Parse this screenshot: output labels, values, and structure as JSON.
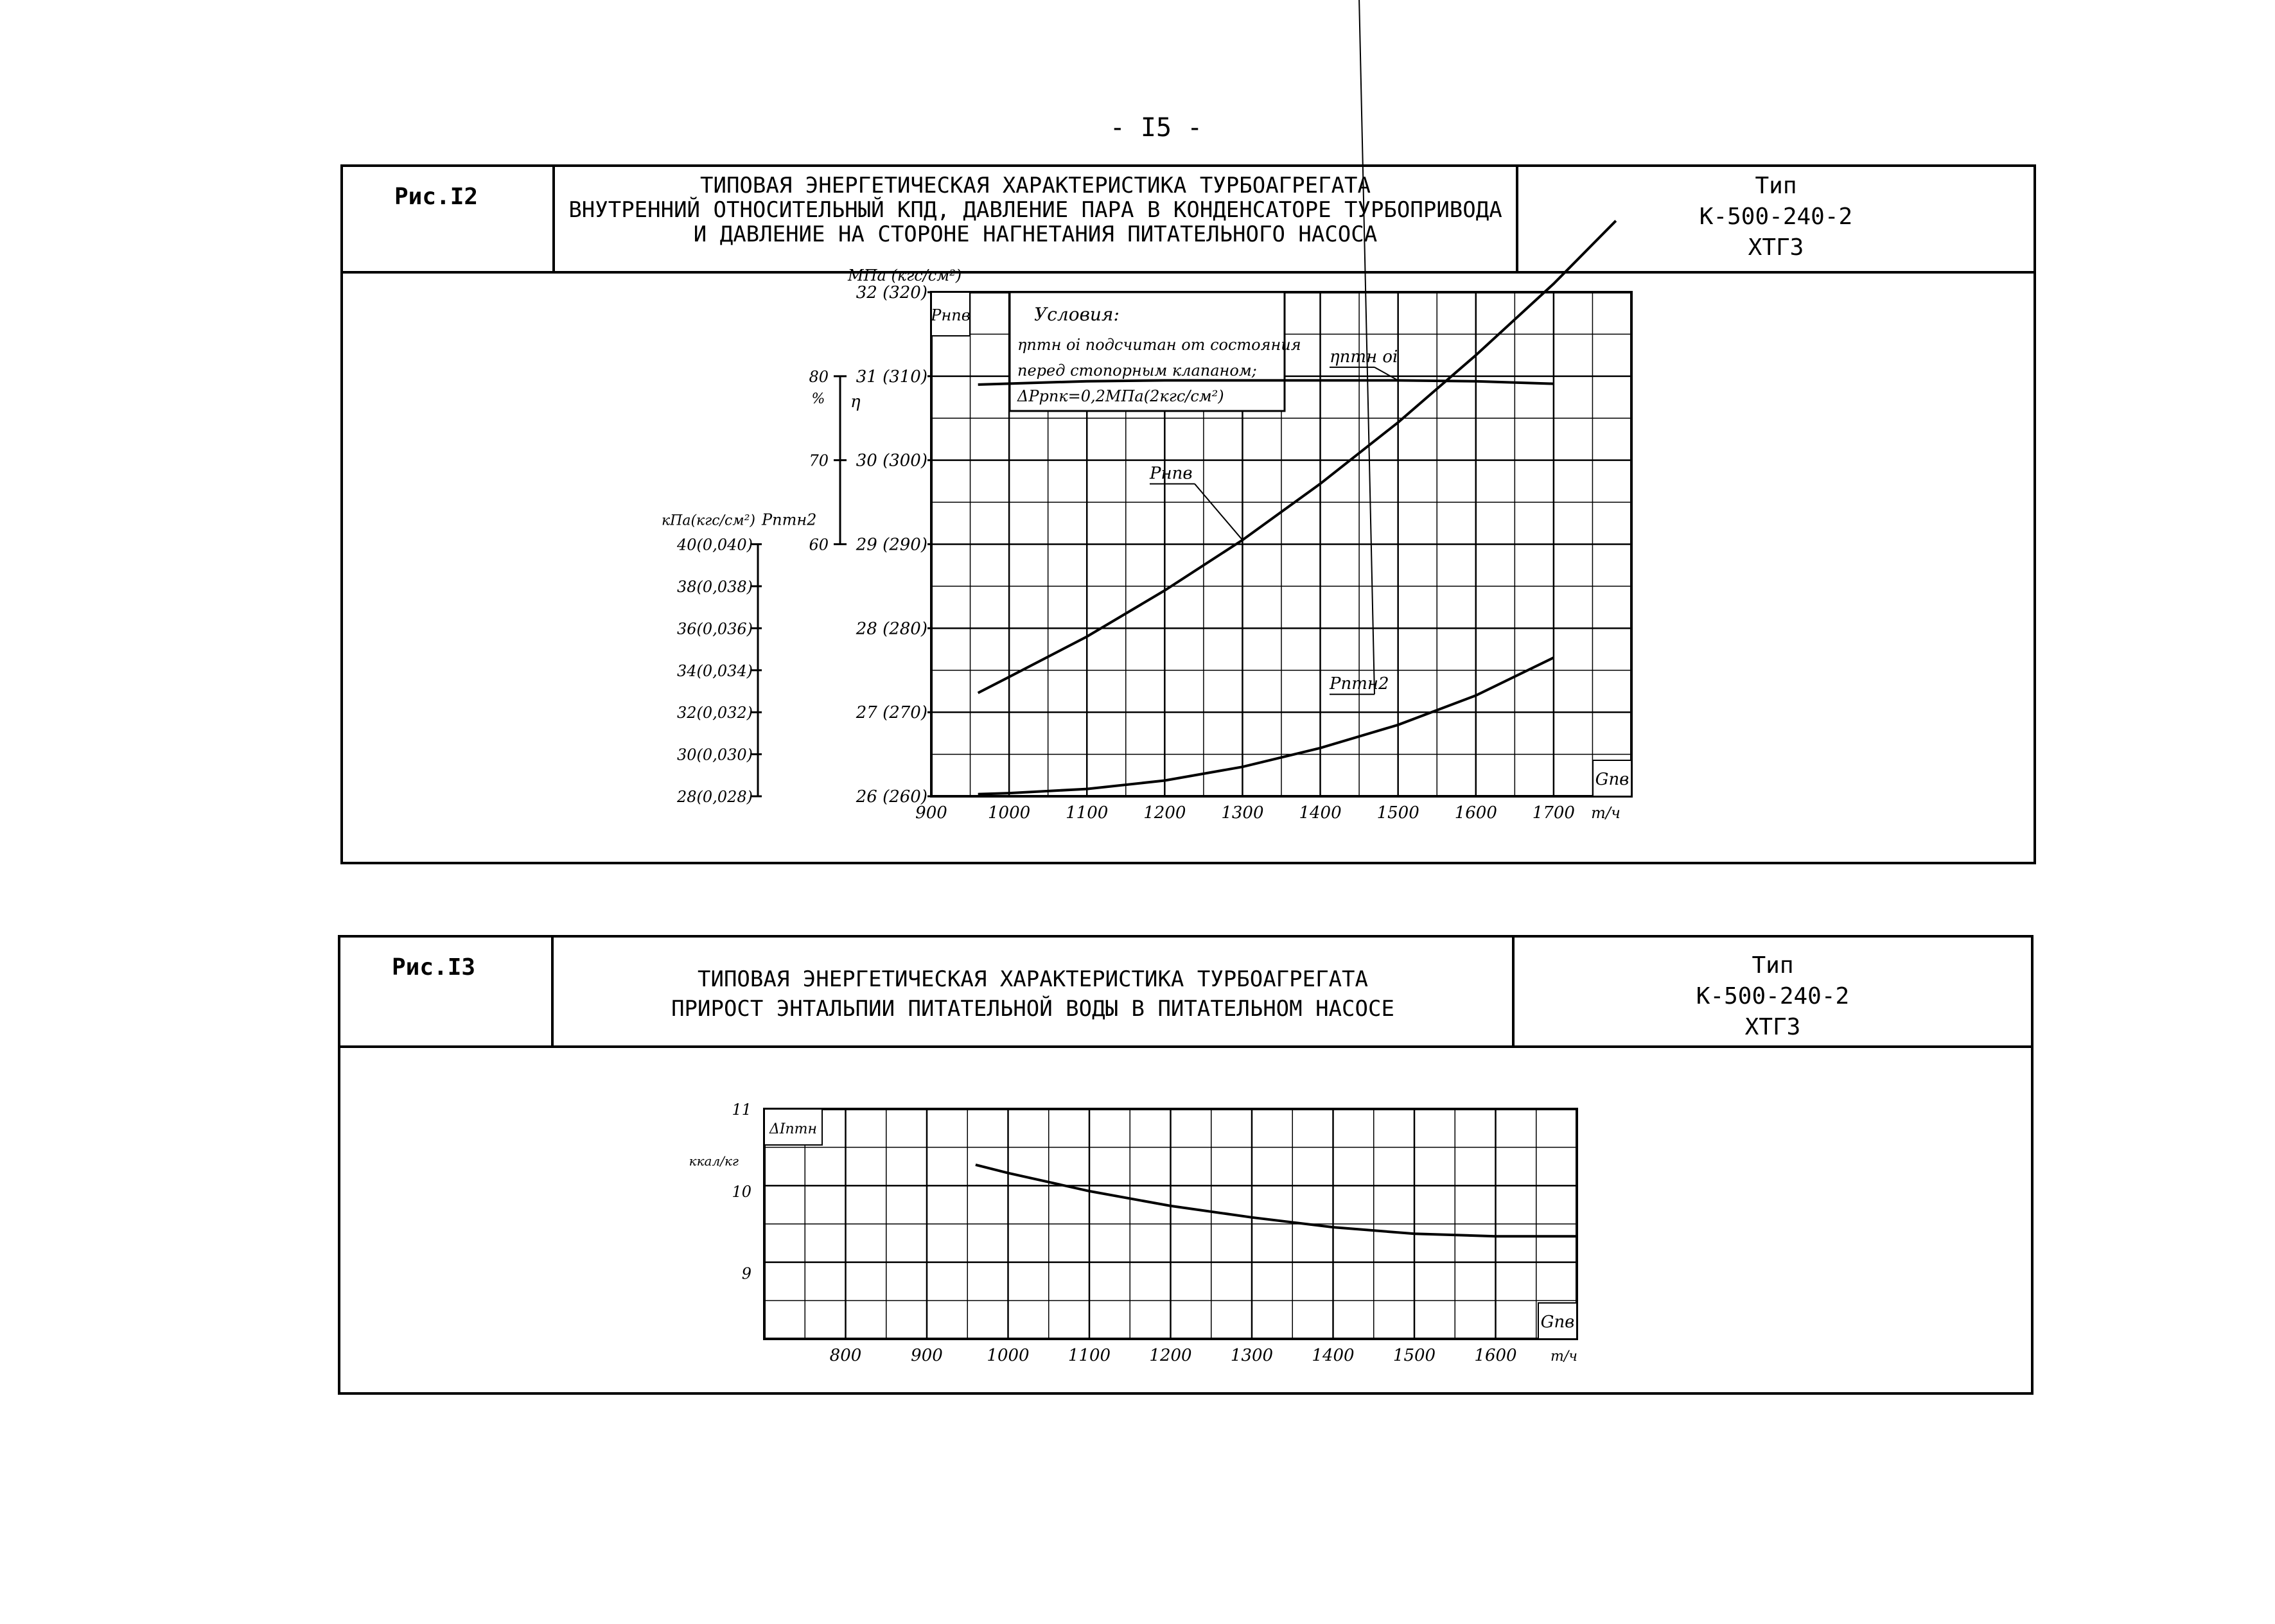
{
  "page_number": "- I5 -",
  "figures": [
    {
      "label": "Рис.I2",
      "title_lines": [
        "ТИПОВАЯ ЭНЕРГЕТИЧЕСКАЯ ХАРАКТЕРИСТИКА ТУРБОАГРЕГАТА",
        "ВНУТРЕННИЙ ОТНОСИТЕЛЬНЫЙ КПД, ДАВЛЕНИЕ ПАРА В КОНДЕНСАТОРЕ ТУРБОПРИВОДА",
        "И ДАВЛЕНИЕ НА СТОРОНЕ НАГНЕТАНИЯ ПИТАТЕЛЬНОГО НАСОСА"
      ],
      "type_lines": [
        "Тип",
        "К-500-240-2",
        "ХТГЗ"
      ]
    },
    {
      "label": "Рис.I3",
      "title_lines": [
        "ТИПОВАЯ ЭНЕРГЕТИЧЕСКАЯ ХАРАКТЕРИСТИКА ТУРБОАГРЕГАТА",
        "ПРИРОСТ ЭНТАЛЬПИИ ПИТАТЕЛЬНОЙ ВОДЫ В ПИТАТЕЛЬНОМ НАСОСЕ"
      ],
      "type_lines": [
        "Тип",
        "К-500-240-2",
        "ХТГЗ"
      ]
    }
  ],
  "chart_data": [
    {
      "type": "line",
      "x_ticks": [
        "900",
        "1000",
        "1100",
        "1200",
        "1300",
        "1400",
        "1500",
        "1600",
        "1700"
      ],
      "x_unit": "т/ч",
      "x_symbol": "Gпв",
      "xlim": [
        900,
        1800
      ],
      "grid": true,
      "axes": {
        "pressure": {
          "unit": "МПа (кгс/см²)",
          "symbol": "Pнпв",
          "ticks": [
            "32 (320)",
            "31 (310)",
            "30 (300)",
            "29 (290)",
            "28 (280)",
            "27 (270)",
            "26 (260)"
          ],
          "ylim": [
            26,
            32
          ]
        },
        "efficiency": {
          "unit": "%",
          "symbol": "η",
          "ticks": [
            "80",
            "70",
            "60"
          ],
          "ylim": [
            60,
            80
          ]
        },
        "condenser": {
          "unit": "кПа(кгс/см²)",
          "symbol": "Pптн2",
          "ticks": [
            "40(0,040)",
            "38(0,038)",
            "36(0,036)",
            "34(0,034)",
            "32(0,032)",
            "30(0,030)",
            "28(0,028)"
          ],
          "ylim": [
            28,
            40
          ]
        }
      },
      "conditions": {
        "title": "Условия:",
        "lines": [
          "ηптн oi подсчитан от состояния",
          "перед стопорным клапаном;",
          "ΔPрпк=0,2МПа(2кгс/см²)"
        ]
      },
      "series": [
        {
          "name": "Pнпв",
          "axis": "pressure",
          "x": [
            960,
            1000,
            1100,
            1200,
            1300,
            1400,
            1500,
            1600,
            1700,
            1780
          ],
          "y": [
            27.23,
            27.42,
            27.9,
            28.45,
            29.05,
            29.72,
            30.45,
            31.25,
            32.1,
            32.85
          ]
        },
        {
          "name": "ηптн oi",
          "axis": "efficiency",
          "x": [
            960,
            1100,
            1200,
            1300,
            1400,
            1500,
            1600,
            1700
          ],
          "y": [
            79.0,
            79.4,
            79.5,
            79.5,
            79.5,
            79.5,
            79.4,
            79.1
          ]
        },
        {
          "name": "Pптн2",
          "axis": "condenser",
          "x": [
            960,
            1000,
            1100,
            1200,
            1300,
            1400,
            1500,
            1600,
            1700
          ],
          "y": [
            28.1,
            28.15,
            28.35,
            28.75,
            29.4,
            30.3,
            31.4,
            32.8,
            34.6
          ]
        }
      ]
    },
    {
      "type": "line",
      "x_ticks": [
        "800",
        "900",
        "1000",
        "1100",
        "1200",
        "1300",
        "1400",
        "1500",
        "1600"
      ],
      "x_unit": "т/ч",
      "x_symbol": "Gпв",
      "xlim": [
        700,
        1700
      ],
      "ylabel": "ккал/кг",
      "y_symbol": "ΔIптн",
      "y_ticks": [
        "11",
        "10",
        "9"
      ],
      "ylim": [
        8.2,
        11
      ],
      "grid": true,
      "series": [
        {
          "name": "ΔIптн",
          "x": [
            960,
            1000,
            1100,
            1200,
            1300,
            1400,
            1500,
            1600,
            1700
          ],
          "y": [
            10.32,
            10.22,
            10.0,
            9.82,
            9.68,
            9.56,
            9.48,
            9.45,
            9.45
          ]
        }
      ]
    }
  ]
}
